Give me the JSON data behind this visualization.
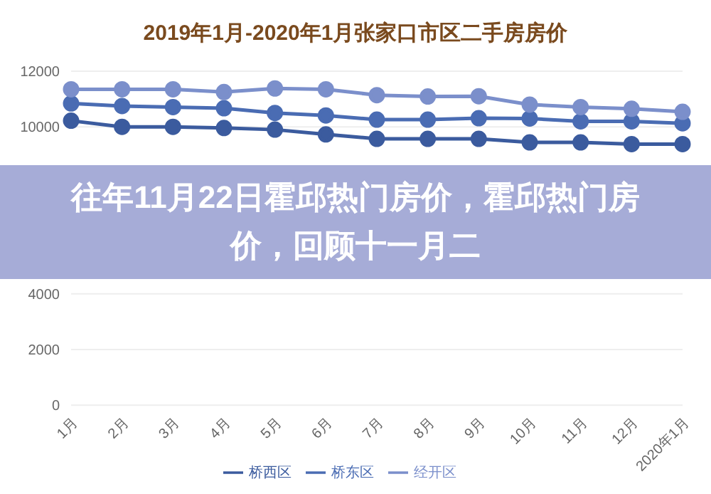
{
  "chart_data": {
    "type": "line",
    "title": "2019年1月-2020年1月张家口市区二手房房价",
    "categories": [
      "1月",
      "2月",
      "3月",
      "4月",
      "5月",
      "6月",
      "7月",
      "8月",
      "9月",
      "10月",
      "11月",
      "12月",
      "2020年1月"
    ],
    "series": [
      {
        "name": "桥西区",
        "color": "#3b5b9e",
        "values": [
          10220,
          10000,
          10000,
          9960,
          9900,
          9730,
          9570,
          9570,
          9570,
          9440,
          9440,
          9380,
          9380
        ]
      },
      {
        "name": "桥东区",
        "color": "#4a6cb3",
        "values": [
          10840,
          10750,
          10710,
          10670,
          10500,
          10410,
          10260,
          10260,
          10310,
          10300,
          10200,
          10200,
          10130
        ]
      },
      {
        "name": "经开区",
        "color": "#7b8fcb",
        "values": [
          11350,
          11350,
          11350,
          11250,
          11380,
          11350,
          11140,
          11090,
          11100,
          10800,
          10710,
          10650,
          10540
        ]
      }
    ],
    "ylim": [
      0,
      12000
    ],
    "yticks": [
      0,
      2000,
      4000,
      10000,
      12000
    ],
    "grid": "y",
    "legend": "bottom",
    "marker": "circle",
    "line_style": "solid",
    "annotations": [
      "往年11月22日霍邱热门房价，霍邱热门房价，回顾十一月二"
    ]
  }
}
